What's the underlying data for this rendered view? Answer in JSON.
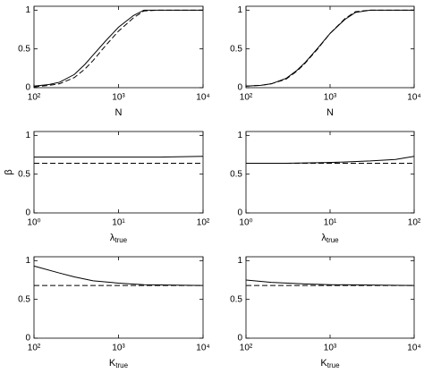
{
  "chart_data": [
    {
      "type": "line",
      "xscale": "log",
      "xlabel": "N",
      "x": [
        100,
        150,
        200,
        300,
        400,
        500,
        700,
        1000,
        1500,
        2000,
        3000,
        10000
      ],
      "series": [
        {
          "color": "#000000",
          "style": "solid",
          "values": [
            0.02,
            0.04,
            0.07,
            0.17,
            0.3,
            0.42,
            0.6,
            0.78,
            0.93,
            1.0,
            1.0,
            1.0
          ]
        },
        {
          "color": "#000000",
          "style": "dashed",
          "values": [
            0.01,
            0.03,
            0.05,
            0.13,
            0.24,
            0.35,
            0.54,
            0.73,
            0.9,
            0.99,
            1.0,
            1.0
          ]
        }
      ],
      "xlim": [
        100,
        10000
      ],
      "xticks": [
        {
          "value": 100,
          "label": "10²"
        },
        {
          "value": 1000,
          "label": "10³"
        },
        {
          "value": 10000,
          "label": "10⁴"
        }
      ],
      "ylim": [
        0,
        1.05
      ],
      "yticks": [
        0,
        0.5,
        1
      ]
    },
    {
      "type": "line",
      "xscale": "log",
      "xlabel": "N",
      "x": [
        100,
        150,
        200,
        300,
        400,
        500,
        700,
        1000,
        1500,
        2000,
        3000,
        10000
      ],
      "series": [
        {
          "color": "#000000",
          "style": "solid",
          "values": [
            0.02,
            0.03,
            0.05,
            0.12,
            0.22,
            0.32,
            0.5,
            0.7,
            0.88,
            0.97,
            1.0,
            1.0
          ]
        },
        {
          "color": "#000000",
          "style": "dashed",
          "values": [
            0.02,
            0.03,
            0.05,
            0.11,
            0.21,
            0.31,
            0.49,
            0.7,
            0.89,
            0.98,
            1.0,
            1.0
          ]
        }
      ],
      "xlim": [
        100,
        10000
      ],
      "xticks": [
        {
          "value": 100,
          "label": "10²"
        },
        {
          "value": 1000,
          "label": "10³"
        },
        {
          "value": 10000,
          "label": "10⁴"
        }
      ],
      "ylim": [
        0,
        1.05
      ],
      "yticks": [
        0,
        0.5,
        1
      ]
    },
    {
      "type": "line",
      "xscale": "log",
      "xlabel": "λ",
      "xlabel_sub": "true",
      "ylabel": "β",
      "x": [
        1,
        3,
        10,
        30,
        100
      ],
      "series": [
        {
          "color": "#000000",
          "style": "solid",
          "values": [
            0.72,
            0.72,
            0.72,
            0.72,
            0.73
          ]
        },
        {
          "color": "#000000",
          "style": "dashed",
          "values": [
            0.64,
            0.64,
            0.64,
            0.64,
            0.64
          ]
        }
      ],
      "xlim": [
        1,
        100
      ],
      "xticks": [
        {
          "value": 1,
          "label": "10⁰"
        },
        {
          "value": 10,
          "label": "10¹"
        },
        {
          "value": 100,
          "label": "10²"
        }
      ],
      "ylim": [
        0,
        1.05
      ],
      "yticks": [
        0,
        0.5,
        1
      ]
    },
    {
      "type": "line",
      "xscale": "log",
      "xlabel": "λ",
      "xlabel_sub": "true",
      "x": [
        1,
        3,
        10,
        30,
        60,
        100
      ],
      "series": [
        {
          "color": "#000000",
          "style": "solid",
          "values": [
            0.64,
            0.64,
            0.65,
            0.67,
            0.69,
            0.73
          ]
        },
        {
          "color": "#000000",
          "style": "dashed",
          "values": [
            0.64,
            0.64,
            0.64,
            0.64,
            0.64,
            0.64
          ]
        }
      ],
      "xlim": [
        1,
        100
      ],
      "xticks": [
        {
          "value": 1,
          "label": "10⁰"
        },
        {
          "value": 10,
          "label": "10¹"
        },
        {
          "value": 100,
          "label": "10²"
        }
      ],
      "ylim": [
        0,
        1.05
      ],
      "yticks": [
        0,
        0.5,
        1
      ]
    },
    {
      "type": "line",
      "xscale": "log",
      "xlabel": "K",
      "xlabel_sub": "true",
      "x": [
        100,
        200,
        300,
        500,
        1000,
        2000,
        10000
      ],
      "series": [
        {
          "color": "#000000",
          "style": "solid",
          "values": [
            0.93,
            0.84,
            0.79,
            0.74,
            0.71,
            0.69,
            0.68
          ]
        },
        {
          "color": "#000000",
          "style": "dashed",
          "values": [
            0.68,
            0.68,
            0.68,
            0.68,
            0.68,
            0.68,
            0.68
          ]
        }
      ],
      "xlim": [
        100,
        10000
      ],
      "xticks": [
        {
          "value": 100,
          "label": "10²"
        },
        {
          "value": 1000,
          "label": "10³"
        },
        {
          "value": 10000,
          "label": "10⁴"
        }
      ],
      "ylim": [
        0,
        1.05
      ],
      "yticks": [
        0,
        0.5,
        1
      ]
    },
    {
      "type": "line",
      "xscale": "log",
      "xlabel": "K",
      "xlabel_sub": "true",
      "x": [
        100,
        200,
        500,
        1000,
        10000
      ],
      "series": [
        {
          "color": "#000000",
          "style": "solid",
          "values": [
            0.75,
            0.72,
            0.7,
            0.69,
            0.68
          ]
        },
        {
          "color": "#000000",
          "style": "dashed",
          "values": [
            0.68,
            0.68,
            0.68,
            0.68,
            0.68
          ]
        }
      ],
      "xlim": [
        100,
        10000
      ],
      "xticks": [
        {
          "value": 100,
          "label": "10²"
        },
        {
          "value": 1000,
          "label": "10³"
        },
        {
          "value": 10000,
          "label": "10⁴"
        }
      ],
      "ylim": [
        0,
        1.05
      ],
      "yticks": [
        0,
        0.5,
        1
      ]
    }
  ]
}
